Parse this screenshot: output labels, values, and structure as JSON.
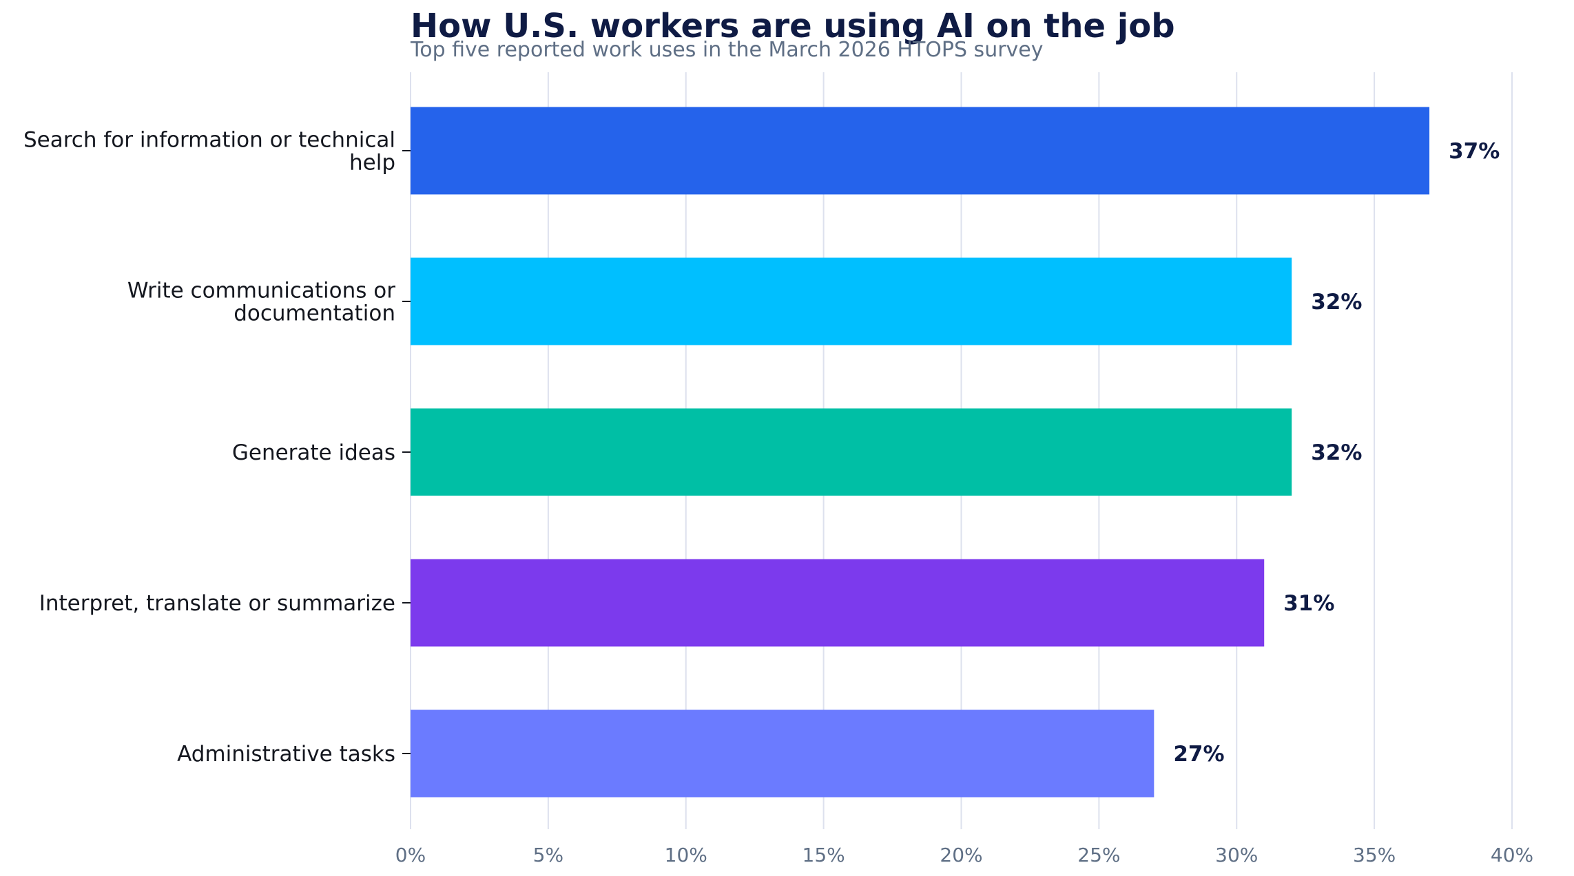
{
  "chart_data": {
    "type": "bar",
    "orientation": "horizontal",
    "title": "How U.S. workers are using AI on the job",
    "subtitle": "Top five reported work uses in the March 2026 HTOPS survey",
    "categories": [
      "Search for information or technical help",
      "Write communications or documentation",
      "Generate ideas",
      "Interpret, translate or summarize",
      "Administrative tasks"
    ],
    "category_lines": [
      [
        "Search for information or technical",
        "help"
      ],
      [
        "Write communications or",
        "documentation"
      ],
      [
        "Generate ideas"
      ],
      [
        "Interpret, translate or summarize"
      ],
      [
        "Administrative tasks"
      ]
    ],
    "values": [
      37,
      32,
      32,
      31,
      27
    ],
    "value_labels": [
      "37%",
      "32%",
      "32%",
      "31%",
      "27%"
    ],
    "colors": [
      "#2563eb",
      "#00bfff",
      "#00bfa5",
      "#7c3aed",
      "#6b7bff"
    ],
    "xlim": [
      0,
      40
    ],
    "xticks": [
      0,
      5,
      10,
      15,
      20,
      25,
      30,
      35,
      40
    ],
    "xtick_labels": [
      "0%",
      "5%",
      "10%",
      "15%",
      "20%",
      "25%",
      "30%",
      "35%",
      "40%"
    ],
    "xlabel": "",
    "ylabel": "",
    "grid": "vertical",
    "grid_color": "#dde1ee",
    "legend": "none"
  }
}
